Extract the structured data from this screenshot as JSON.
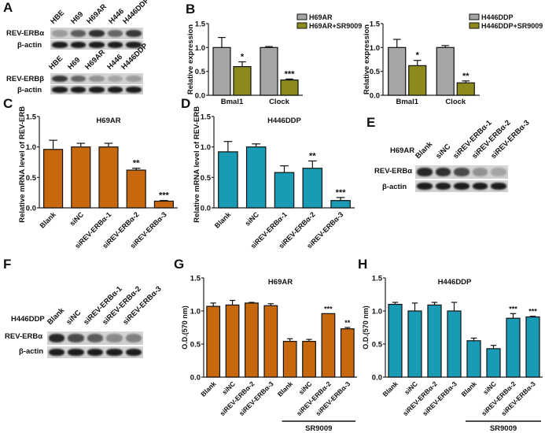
{
  "panels": {
    "A": {
      "letter": "A"
    },
    "B": {
      "letter": "B"
    },
    "C": {
      "letter": "C"
    },
    "D": {
      "letter": "D"
    },
    "E": {
      "letter": "E"
    },
    "F": {
      "letter": "F"
    },
    "G": {
      "letter": "G"
    },
    "H": {
      "letter": "H"
    }
  },
  "blot_A": {
    "top": {
      "lanes": [
        "HBE",
        "H69",
        "H69AR",
        "H446",
        "H446DDP"
      ],
      "rows": [
        "REV-ERBα",
        "β-actin"
      ],
      "target_intensity": [
        0.25,
        0.6,
        0.85,
        0.55,
        0.8
      ]
    },
    "bottom": {
      "lanes": [
        "HBE",
        "H69",
        "H69AR",
        "H446",
        "H446DDP"
      ],
      "rows": [
        "REV-ERBβ",
        "β-actin"
      ],
      "target_intensity": [
        0.8,
        0.55,
        0.3,
        0.2,
        0.25
      ]
    }
  },
  "blot_E": {
    "cell_line": "H69AR",
    "lanes": [
      "Blank",
      "siNC",
      "siREV-ERBα-1",
      "siREV-ERBα-2",
      "siREV-ERBα-3"
    ],
    "rows": [
      "REV-ERBα",
      "β-actin"
    ],
    "target_intensity": [
      0.9,
      0.85,
      0.7,
      0.3,
      0.2
    ]
  },
  "blot_F": {
    "cell_line": "H446DDP",
    "lanes": [
      "Blank",
      "siNC",
      "siREV-ERBα-1",
      "siREV-ERBα-2",
      "siREV-ERBα-3"
    ],
    "rows": [
      "REV-ERBα",
      "β-actin"
    ],
    "target_intensity": [
      0.9,
      0.7,
      0.6,
      0.35,
      0.4
    ]
  },
  "chart_data": [
    {
      "id": "B1",
      "type": "bar",
      "title": "",
      "ylabel": "Relative expression",
      "xlabel": "",
      "ylim": [
        0,
        1.5
      ],
      "yticks": [
        "0.0",
        "0.5",
        "1.0",
        "1.5"
      ],
      "categories": [
        "Bmal1",
        "Clock"
      ],
      "series": [
        {
          "name": "H69AR",
          "color": "#a6a6a6",
          "values": [
            1.0,
            1.0
          ],
          "errors": [
            0.21,
            0.02
          ],
          "sig": [
            "",
            ""
          ]
        },
        {
          "name": "H69AR+SR9009",
          "color": "#8c8a1c",
          "values": [
            0.6,
            0.32
          ],
          "errors": [
            0.1,
            0.02
          ],
          "sig": [
            "*",
            "***"
          ]
        }
      ],
      "legend": "top-right"
    },
    {
      "id": "B2",
      "type": "bar",
      "title": "",
      "ylabel": "Relative expression",
      "xlabel": "",
      "ylim": [
        0,
        1.5
      ],
      "yticks": [
        "0.0",
        "0.5",
        "1.0",
        "1.5"
      ],
      "categories": [
        "Bmal1",
        "Clock"
      ],
      "series": [
        {
          "name": "H446DDP",
          "color": "#a6a6a6",
          "values": [
            1.0,
            1.0
          ],
          "errors": [
            0.17,
            0.04
          ],
          "sig": [
            "",
            ""
          ]
        },
        {
          "name": "H446DDP+SR9009",
          "color": "#8c8a1c",
          "values": [
            0.62,
            0.26
          ],
          "errors": [
            0.11,
            0.04
          ],
          "sig": [
            "*",
            "**"
          ]
        }
      ],
      "legend": "top-right"
    },
    {
      "id": "C",
      "type": "bar",
      "title": "H69AR",
      "ylabel": "Relative mRNA level of REV-ERBα",
      "xlabel": "",
      "ylim": [
        0,
        1.5
      ],
      "yticks": [
        "0.0",
        "0.5",
        "1.0",
        "1.5"
      ],
      "categories": [
        "Blank",
        "siNC",
        "siREV-ERBα-1",
        "siREV-ERBα-2",
        "siREV-ERBα-3"
      ],
      "series": [
        {
          "name": "H69AR",
          "color": "#c8680e",
          "values": [
            0.96,
            1.0,
            1.0,
            0.62,
            0.11
          ],
          "errors": [
            0.15,
            0.06,
            0.06,
            0.03,
            0.01
          ],
          "sig": [
            "",
            "",
            "",
            "**",
            "***"
          ]
        }
      ]
    },
    {
      "id": "D",
      "type": "bar",
      "title": "H446DDP",
      "ylabel": "Relative mRNA level of REV-ERBα",
      "xlabel": "",
      "ylim": [
        0,
        1.5
      ],
      "yticks": [
        "0.0",
        "0.5",
        "1.0",
        "1.5"
      ],
      "categories": [
        "Blank",
        "siNC",
        "siREV-ERBα-1",
        "siREV-ERBα-2",
        "siREV-ERBα-3"
      ],
      "series": [
        {
          "name": "H446DDP",
          "color": "#1a9bb5",
          "values": [
            0.92,
            1.0,
            0.58,
            0.65,
            0.12
          ],
          "errors": [
            0.17,
            0.05,
            0.11,
            0.12,
            0.05
          ],
          "sig": [
            "",
            "",
            "",
            "**",
            "***"
          ]
        }
      ]
    },
    {
      "id": "G",
      "type": "bar",
      "title": "H69AR",
      "ylabel": "O.D.(570 nm)",
      "xlabel": "",
      "ylim": [
        0,
        1.5
      ],
      "yticks": [
        "0.0",
        "0.5",
        "1.0",
        "1.5"
      ],
      "categories": [
        "Blank",
        "siNC",
        "siREV-ERBα-2",
        "siREV-ERBα-3",
        "Blank",
        "siNC",
        "siREV-ERBα-2",
        "siREV-ERBα-3"
      ],
      "group_bracket": {
        "label": "SR9009",
        "from": 4,
        "to": 7
      },
      "series": [
        {
          "name": "H69AR",
          "color": "#c8680e",
          "values": [
            1.07,
            1.09,
            1.12,
            1.08,
            0.54,
            0.54,
            0.96,
            0.73
          ],
          "errors": [
            0.05,
            0.07,
            0.01,
            0.03,
            0.04,
            0.03,
            0.0,
            0.02
          ],
          "sig": [
            "",
            "",
            "",
            "",
            "",
            "",
            "***",
            "**"
          ]
        }
      ]
    },
    {
      "id": "H",
      "type": "bar",
      "title": "H446DDP",
      "ylabel": "O.D.(570 nm)",
      "xlabel": "",
      "ylim": [
        0,
        1.5
      ],
      "yticks": [
        "0.0",
        "0.5",
        "1.0",
        "1.5"
      ],
      "categories": [
        "Blank",
        "siNC",
        "siREV-ERBα-2",
        "siREV-ERBα-3",
        "Blank",
        "siNC",
        "siREV-ERBα-2",
        "siREV-ERBα-3"
      ],
      "group_bracket": {
        "label": "SR9009",
        "from": 4,
        "to": 7
      },
      "series": [
        {
          "name": "H446DDP",
          "color": "#1a9bb5",
          "values": [
            1.1,
            1.0,
            1.09,
            1.0,
            0.55,
            0.43,
            0.89,
            0.91
          ],
          "errors": [
            0.03,
            0.12,
            0.04,
            0.13,
            0.04,
            0.05,
            0.07,
            0.01
          ],
          "sig": [
            "",
            "",
            "",
            "",
            "",
            "",
            "***",
            "***"
          ]
        }
      ]
    }
  ]
}
